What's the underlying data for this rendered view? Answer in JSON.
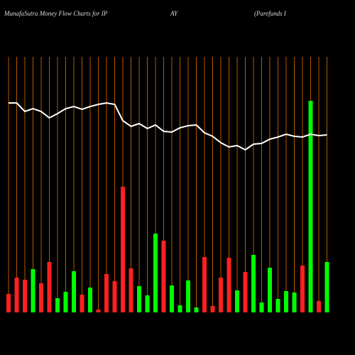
{
  "chart_data": {
    "type": "bar",
    "title_parts": [
      "MunafaSutra  Money Flow  Charts for IP",
      "AY",
      "(Parefunds I"
    ],
    "grid": true,
    "grid_color": "#b35900",
    "ylim": [
      0,
      360
    ],
    "bar_colors": [
      "#ff2020",
      "#ff2020",
      "#ff2020",
      "#00ff00",
      "#ff2020",
      "#ff2020",
      "#00ff00",
      "#00ff00",
      "#00ff00",
      "#ff2020",
      "#00ff00",
      "#ff2020",
      "#ff2020",
      "#ff2020",
      "#ff2020",
      "#ff2020",
      "#00ff00",
      "#00ff00",
      "#00ff00",
      "#ff2020",
      "#00ff00",
      "#00ff00",
      "#00ff00",
      "#00ff00",
      "#ff2020",
      "#ff2020",
      "#ff2020",
      "#ff2020",
      "#00ff00",
      "#ff2020",
      "#00ff00",
      "#00ff00",
      "#00ff00",
      "#00ff00",
      "#00ff00",
      "#00ff00",
      "#ff2020",
      "#00ff00",
      "#ff2020",
      "#00ff00"
    ],
    "values": [
      26,
      49,
      46,
      61,
      41,
      71,
      20,
      29,
      58,
      25,
      35,
      4,
      54,
      44,
      177,
      62,
      37,
      24,
      111,
      101,
      38,
      10,
      45,
      7,
      78,
      9,
      49,
      77,
      31,
      57,
      81,
      14,
      63,
      19,
      30,
      28,
      66,
      298,
      16,
      71
    ],
    "line": {
      "color": "#ffffff",
      "values": [
        295,
        295,
        283,
        287,
        283,
        274,
        280,
        287,
        290,
        286,
        290,
        293,
        295,
        293,
        270,
        262,
        266,
        259,
        264,
        255,
        254,
        260,
        263,
        264,
        253,
        248,
        239,
        233,
        235,
        229,
        237,
        238,
        244,
        247,
        251,
        248,
        247,
        251,
        249,
        250
      ]
    }
  }
}
